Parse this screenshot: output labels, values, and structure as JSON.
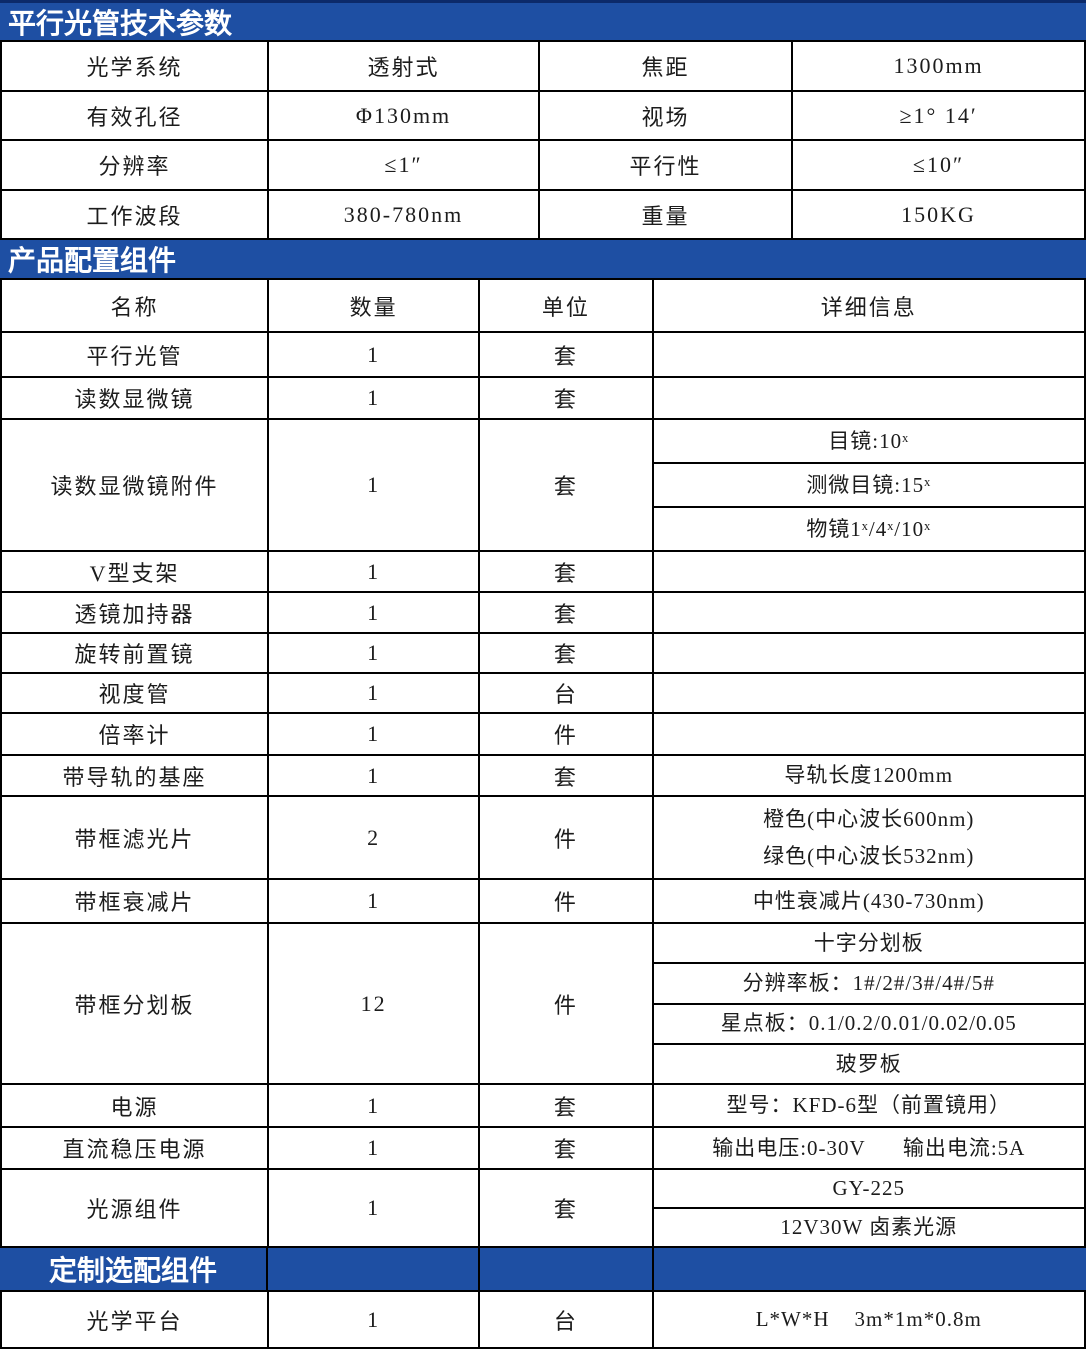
{
  "colors": {
    "accent_blue": "#1e4fa3",
    "accent_blue_dark_edge": "#0c2a6a",
    "border": "#000000",
    "header_text": "#ffffff",
    "body_text": "#1c1c1c"
  },
  "sections": [
    {
      "title": "平行光管技术参数",
      "type": "specs",
      "rows": [
        [
          "光学系统",
          "透射式",
          "焦距",
          "1300mm"
        ],
        [
          "有效孔径",
          "Φ130mm",
          "视场",
          "≥1° 14′"
        ],
        [
          "分辨率",
          "≤1″",
          "平行性",
          "≤10″"
        ],
        [
          "工作波段",
          "380-780nm",
          "重量",
          "150KG"
        ]
      ]
    },
    {
      "title": "产品配置组件",
      "type": "components",
      "headers": [
        "名称",
        "数量",
        "单位",
        "详细信息"
      ],
      "rows": [
        {
          "name": "平行光管",
          "qty": "1",
          "unit": "套",
          "details": []
        },
        {
          "name": "读数显微镜",
          "qty": "1",
          "unit": "套",
          "details": []
        },
        {
          "name": "读数显微镜附件",
          "qty": "1",
          "unit": "套",
          "details": [
            [
              "目镜:10ˣ"
            ],
            [
              "测微目镜:15ˣ"
            ],
            [
              "物镜1ˣ/4ˣ/10ˣ"
            ]
          ]
        },
        {
          "name": "V型支架",
          "qty": "1",
          "unit": "套",
          "details": []
        },
        {
          "name": "透镜加持器",
          "qty": "1",
          "unit": "套",
          "details": []
        },
        {
          "name": "旋转前置镜",
          "qty": "1",
          "unit": "套",
          "details": []
        },
        {
          "name": "视度管",
          "qty": "1",
          "unit": "台",
          "details": []
        },
        {
          "name": "倍率计",
          "qty": "1",
          "unit": "件",
          "details": []
        },
        {
          "name": "带导轨的基座",
          "qty": "1",
          "unit": "套",
          "details": [
            [
              "导轨长度1200mm"
            ]
          ]
        },
        {
          "name": "带框滤光片",
          "qty": "2",
          "unit": "件",
          "details": [
            [
              "橙色(中心波长600nm)",
              "绿色(中心波长532nm)"
            ]
          ]
        },
        {
          "name": "带框衰减片",
          "qty": "1",
          "unit": "件",
          "details": [
            [
              "中性衰减片(430-730nm)"
            ]
          ]
        },
        {
          "name": "带框分划板",
          "qty": "12",
          "unit": "件",
          "details": [
            [
              "十字分划板"
            ],
            [
              "分辨率板：1#/2#/3#/4#/5#"
            ],
            [
              "星点板：0.1/0.2/0.01/0.02/0.05"
            ],
            [
              "玻罗板"
            ]
          ]
        },
        {
          "name": "电源",
          "qty": "1",
          "unit": "套",
          "details": [
            [
              "型号：KFD-6型（前置镜用）"
            ]
          ]
        },
        {
          "name": "直流稳压电源",
          "qty": "1",
          "unit": "套",
          "details": [
            [
              "输出电压:0-30V      输出电流:5A"
            ]
          ]
        },
        {
          "name": "光源组件",
          "qty": "1",
          "unit": "套",
          "details": [
            [
              "GY-225"
            ],
            [
              "12V30W 卤素光源"
            ]
          ]
        }
      ]
    },
    {
      "title": "定制选配组件",
      "type": "optional",
      "rows": [
        {
          "name": "光学平台",
          "qty": "1",
          "unit": "台",
          "details": [
            [
              "L*W*H    3m*1m*0.8m"
            ]
          ]
        }
      ]
    }
  ]
}
